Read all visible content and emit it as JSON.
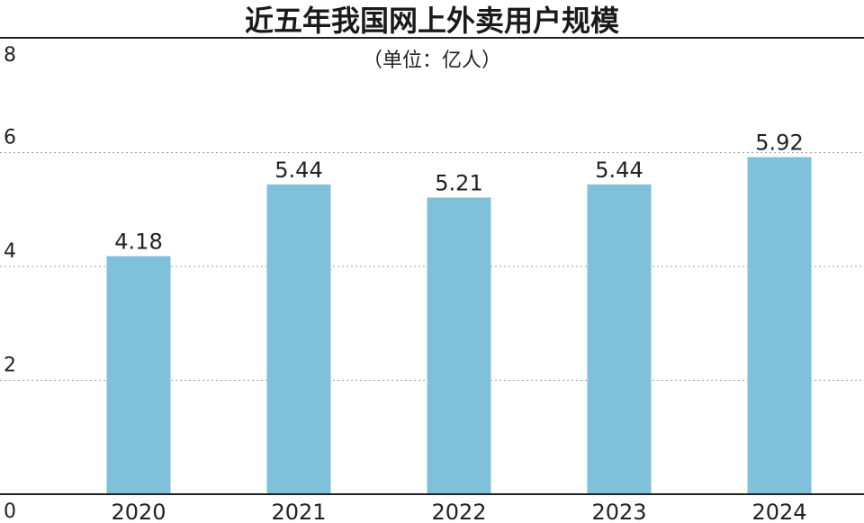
{
  "chart_data": {
    "type": "bar",
    "title": "近五年我国网上外卖用户规模",
    "subtitle": "（单位：亿人）",
    "categories": [
      "2020",
      "2021",
      "2022",
      "2023",
      "2024"
    ],
    "values": [
      4.18,
      5.44,
      5.21,
      5.44,
      5.92
    ],
    "value_labels": [
      "4.18",
      "5.44",
      "5.21",
      "5.44",
      "5.92"
    ],
    "ylim": [
      0,
      8
    ],
    "yticks": [
      0,
      2,
      4,
      6,
      8
    ],
    "ytick_labels": [
      "0",
      "2",
      "4",
      "6",
      "8"
    ],
    "grid": true,
    "legend": "none",
    "bar_color": "#7fc0db",
    "grid_color": "#a0a0a0",
    "axis_color": "#222222"
  }
}
